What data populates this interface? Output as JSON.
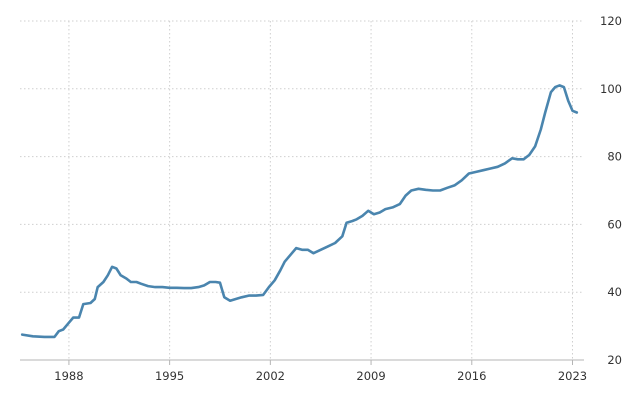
{
  "chart_data": {
    "type": "line",
    "title": "",
    "xlabel": "",
    "ylabel": "",
    "xlim": [
      1984.6,
      2023.8
    ],
    "ylim": [
      20,
      120
    ],
    "x_ticks": [
      1988,
      1995,
      2002,
      2009,
      2016,
      2023
    ],
    "y_ticks": [
      20,
      40,
      60,
      80,
      100,
      120
    ],
    "y_axis_position": "right",
    "grid": true,
    "legend": "none",
    "colors": {
      "line": "#4a85ae",
      "grid": "#cfcfcf",
      "axis": "#b5b5b5",
      "text": "#333333"
    },
    "series": [
      {
        "x": [
          1984.75,
          1985.5,
          1986.3,
          1987,
          1987.3,
          1987.6,
          1988,
          1988.3,
          1988.7,
          1989,
          1989.5,
          1989.8,
          1990,
          1990.4,
          1990.7,
          1991,
          1991.3,
          1991.6,
          1992,
          1992.3,
          1992.7,
          1993,
          1993.5,
          1994,
          1994.5,
          1995,
          1995.5,
          1996,
          1996.5,
          1997,
          1997.4,
          1997.8,
          1998.2,
          1998.5,
          1998.8,
          1999.2,
          1999.6,
          2000,
          2000.5,
          2001,
          2001.5,
          2001.9,
          2002.3,
          2002.7,
          2003,
          2003.5,
          2003.8,
          2004.2,
          2004.6,
          2005,
          2005.5,
          2006,
          2006.5,
          2007,
          2007.3,
          2007.7,
          2008,
          2008.4,
          2008.8,
          2009.2,
          2009.6,
          2010,
          2010.5,
          2011,
          2011.4,
          2011.8,
          2012.3,
          2012.8,
          2013.3,
          2013.8,
          2014.3,
          2014.8,
          2015.3,
          2015.8,
          2016.3,
          2016.8,
          2017.3,
          2017.8,
          2018.3,
          2018.8,
          2019.2,
          2019.6,
          2020,
          2020.4,
          2020.8,
          2021.1,
          2021.5,
          2021.8,
          2022.1,
          2022.4,
          2022.7,
          2023,
          2023.3
        ],
        "y": [
          27.5,
          27.0,
          26.8,
          26.8,
          28.5,
          29.0,
          31.0,
          32.5,
          32.5,
          36.5,
          36.8,
          38.0,
          41.5,
          43.0,
          45.0,
          47.5,
          47.0,
          45.0,
          44.0,
          43.0,
          43.0,
          42.5,
          41.8,
          41.5,
          41.5,
          41.3,
          41.3,
          41.2,
          41.2,
          41.5,
          42.0,
          43.0,
          43.0,
          42.8,
          38.5,
          37.5,
          38.0,
          38.5,
          39.0,
          39.0,
          39.2,
          41.5,
          43.5,
          46.5,
          49.0,
          51.5,
          53.0,
          52.5,
          52.5,
          51.5,
          52.5,
          53.5,
          54.5,
          56.5,
          60.5,
          61.0,
          61.5,
          62.5,
          64.0,
          63.0,
          63.5,
          64.5,
          65.0,
          66.0,
          68.5,
          70.0,
          70.5,
          70.2,
          70.0,
          70.0,
          70.8,
          71.5,
          73.0,
          75.0,
          75.5,
          76.0,
          76.5,
          77.0,
          78.0,
          79.5,
          79.2,
          79.2,
          80.5,
          83.0,
          88.0,
          93.0,
          99.0,
          100.5,
          101.0,
          100.5,
          96.5,
          93.5,
          93.0
        ]
      }
    ]
  }
}
